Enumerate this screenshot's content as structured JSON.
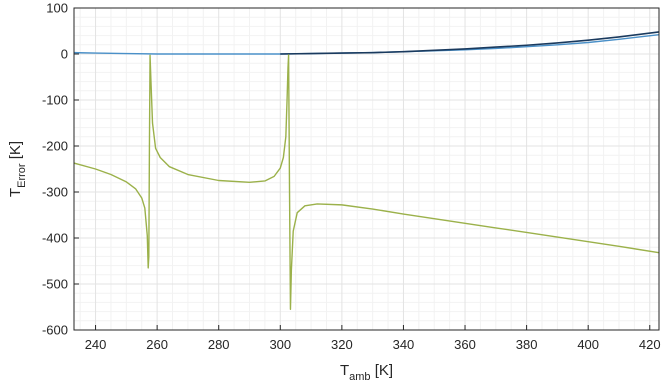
{
  "chart_data": {
    "type": "line",
    "title": "",
    "xlabel": {
      "main": "T",
      "sub": "amb",
      "unit": " [K]"
    },
    "ylabel": {
      "main": "T",
      "sub": "Error",
      "unit": " [K]"
    },
    "xlim": [
      233,
      423
    ],
    "ylim": [
      -600,
      100
    ],
    "xticks": [
      240,
      260,
      280,
      300,
      320,
      340,
      360,
      380,
      400,
      420
    ],
    "yticks": [
      100,
      0,
      -100,
      -200,
      -300,
      -400,
      -500,
      -600
    ],
    "grid": true,
    "minor_grid": true,
    "legend": "none",
    "colors": {
      "series_blue": "#4a90c8",
      "series_dark": "#1a3a5e",
      "series_green": "#9bb14a",
      "grid": "#e3e3e3",
      "grid_minor": "#f2f2f2",
      "axis": "#262626",
      "plot_background": "#ffffff"
    },
    "series": [
      {
        "color": "#4a90c8",
        "x": [
          233,
          240,
          250,
          260,
          270,
          280,
          290,
          300,
          310,
          320,
          330,
          340,
          350,
          360,
          370,
          380,
          390,
          400,
          410,
          423
        ],
        "y": [
          3,
          2,
          1,
          0,
          0,
          0,
          0,
          0,
          1,
          2,
          3,
          5,
          7,
          9,
          12,
          16,
          20,
          25,
          32,
          42
        ]
      },
      {
        "color": "#1a3a5e",
        "x": [
          300,
          310,
          320,
          330,
          340,
          350,
          360,
          370,
          380,
          390,
          400,
          410,
          423
        ],
        "y": [
          0,
          1,
          2,
          3,
          5,
          8,
          11,
          15,
          19,
          24,
          30,
          37,
          48
        ]
      },
      {
        "color": "#9bb14a",
        "x": [
          233,
          240,
          245,
          250,
          253,
          255,
          256,
          256.8,
          257.1,
          257.3,
          257.5,
          257.7,
          258.0,
          258.5,
          259.5,
          261,
          264,
          270,
          280,
          290,
          295,
          298,
          300,
          301,
          301.8,
          302.2,
          302.5,
          302.7,
          303.0,
          303.3,
          303.6,
          304.2,
          305.5,
          308,
          312,
          320,
          330,
          340,
          350,
          360,
          370,
          380,
          390,
          400,
          410,
          423
        ],
        "y": [
          -237,
          -250,
          -262,
          -278,
          -293,
          -313,
          -335,
          -395,
          -465,
          -440,
          -200,
          -3,
          -60,
          -150,
          -205,
          -225,
          -245,
          -262,
          -275,
          -279,
          -276,
          -266,
          -248,
          -225,
          -180,
          -100,
          -30,
          -2,
          -300,
          -555,
          -470,
          -385,
          -345,
          -330,
          -326,
          -328,
          -337,
          -348,
          -358,
          -368,
          -378,
          -388,
          -398,
          -408,
          -418,
          -432
        ]
      }
    ]
  }
}
